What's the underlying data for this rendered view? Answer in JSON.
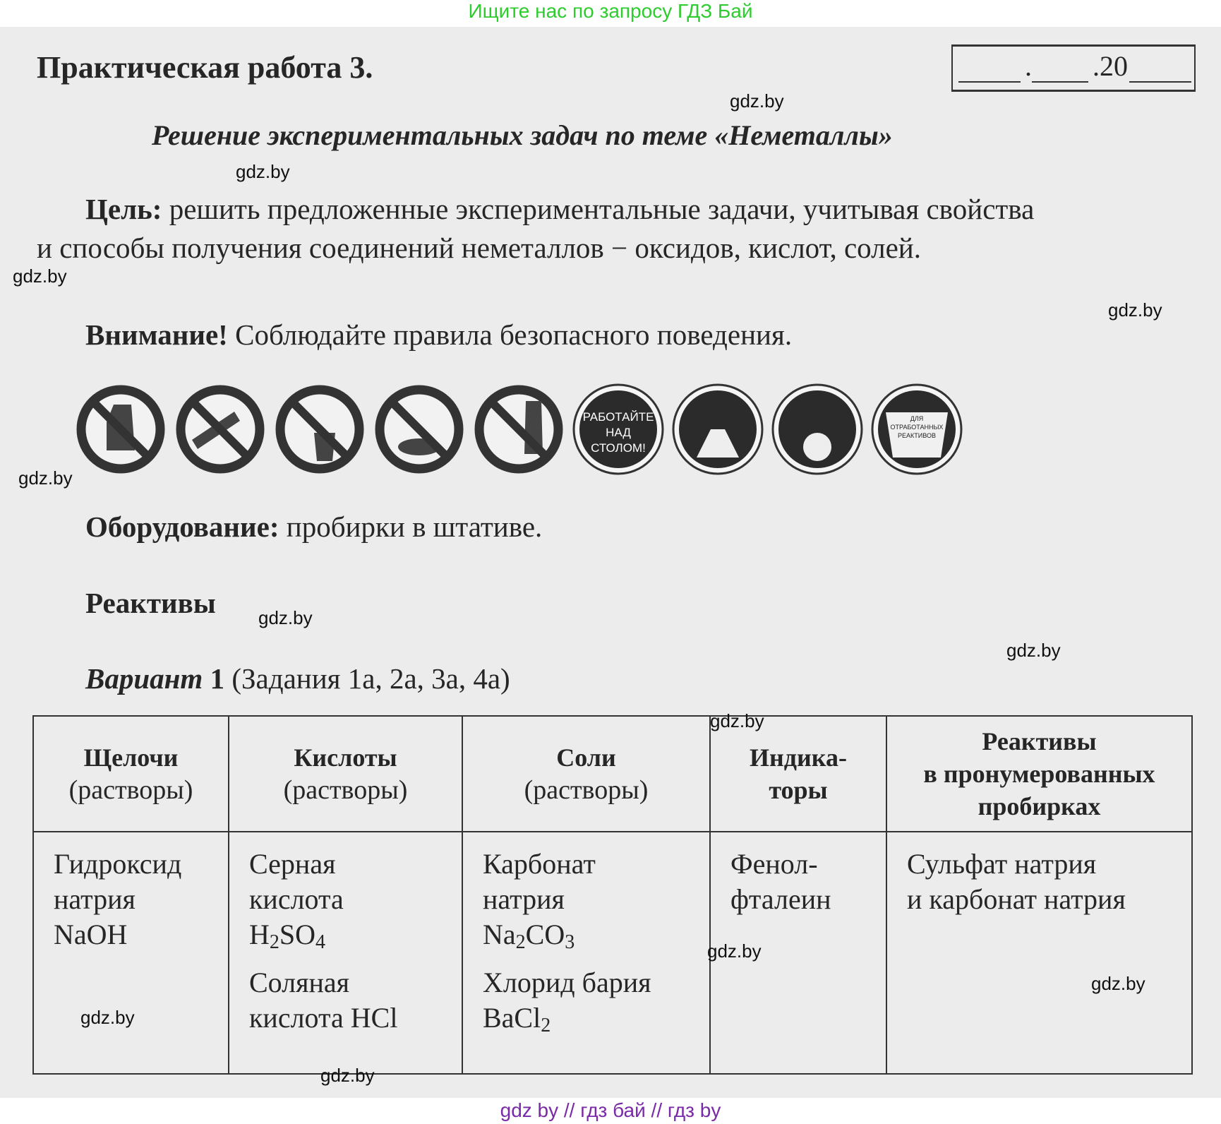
{
  "banner": "Ищите нас по запросу ГДЗ Бай",
  "footer": "gdz by  //  гдз бай  //  гдз by",
  "watermark": "gdz.by",
  "title": "Практическая работа 3.",
  "date_box": {
    "year": ".20"
  },
  "subtitle": "Решение экспериментальных задач по теме «Неметаллы»",
  "goal": {
    "label": "Цель:",
    "line1": "решить предложенные экспериментальные задачи, учитывая свойства",
    "line2": "и способы получения соединений неметаллов − оксидов, кислот, солей."
  },
  "warning": {
    "label": "Внимание!",
    "text": "Соблюдайте правила безопасного поведения."
  },
  "safety_icons": [
    {
      "icon": "no-touch-icon"
    },
    {
      "icon": "no-spill-icon"
    },
    {
      "icon": "no-pour-drinking-glass-icon"
    },
    {
      "icon": "no-pour-sink-icon"
    },
    {
      "icon": "no-unlabeled-bottle-icon"
    },
    {
      "icon": "work-over-table-icon",
      "text": [
        "РАБОТАЙТЕ",
        "НАД",
        "СТОЛОМ!"
      ]
    },
    {
      "icon": "wash-hands-icon"
    },
    {
      "icon": "wash-flask-icon"
    },
    {
      "icon": "waste-container-icon",
      "text": [
        "ДЛЯ",
        "ОТРАБОТАННЫХ",
        "РЕАКТИВОВ"
      ]
    }
  ],
  "equipment": {
    "label": "Оборудование:",
    "text": "пробирки в штативе."
  },
  "reagents_heading": "Реактивы",
  "variant": {
    "label": "Вариант",
    "number": "1",
    "tasks": "(Задания 1а, 2а, 3а, 4а)"
  },
  "table": {
    "headers": [
      {
        "title": "Щелочи",
        "sub": "(растворы)"
      },
      {
        "title": "Кислоты",
        "sub": "(растворы)"
      },
      {
        "title": "Соли",
        "sub": "(растворы)"
      },
      {
        "title": "Индика-",
        "title2": "торы"
      },
      {
        "title": "Реактивы",
        "title2": "в пронумерованных",
        "title3": "пробирках"
      }
    ],
    "alkali": {
      "l1": "Гидроксид",
      "l2": "натрия",
      "f": "NaOH"
    },
    "acids": [
      {
        "l1": "Серная",
        "l2": "кислота",
        "f1": "H",
        "s1": "2",
        "f2": "SO",
        "s2": "4"
      },
      {
        "l1": "Соляная",
        "l2": "кислота HCl"
      }
    ],
    "salts": [
      {
        "l1": "Карбонат",
        "l2": "натрия",
        "f1": "Na",
        "s1": "2",
        "f2": "CO",
        "s2": "3"
      },
      {
        "l1": "Хлорид бария",
        "f1": "BaCl",
        "s1": "2"
      }
    ],
    "indicator": {
      "l1": "Фенол-",
      "l2": "фталеин"
    },
    "tubes": {
      "l1": "Сульфат натрия",
      "l2": "и карбонат натрия"
    }
  }
}
